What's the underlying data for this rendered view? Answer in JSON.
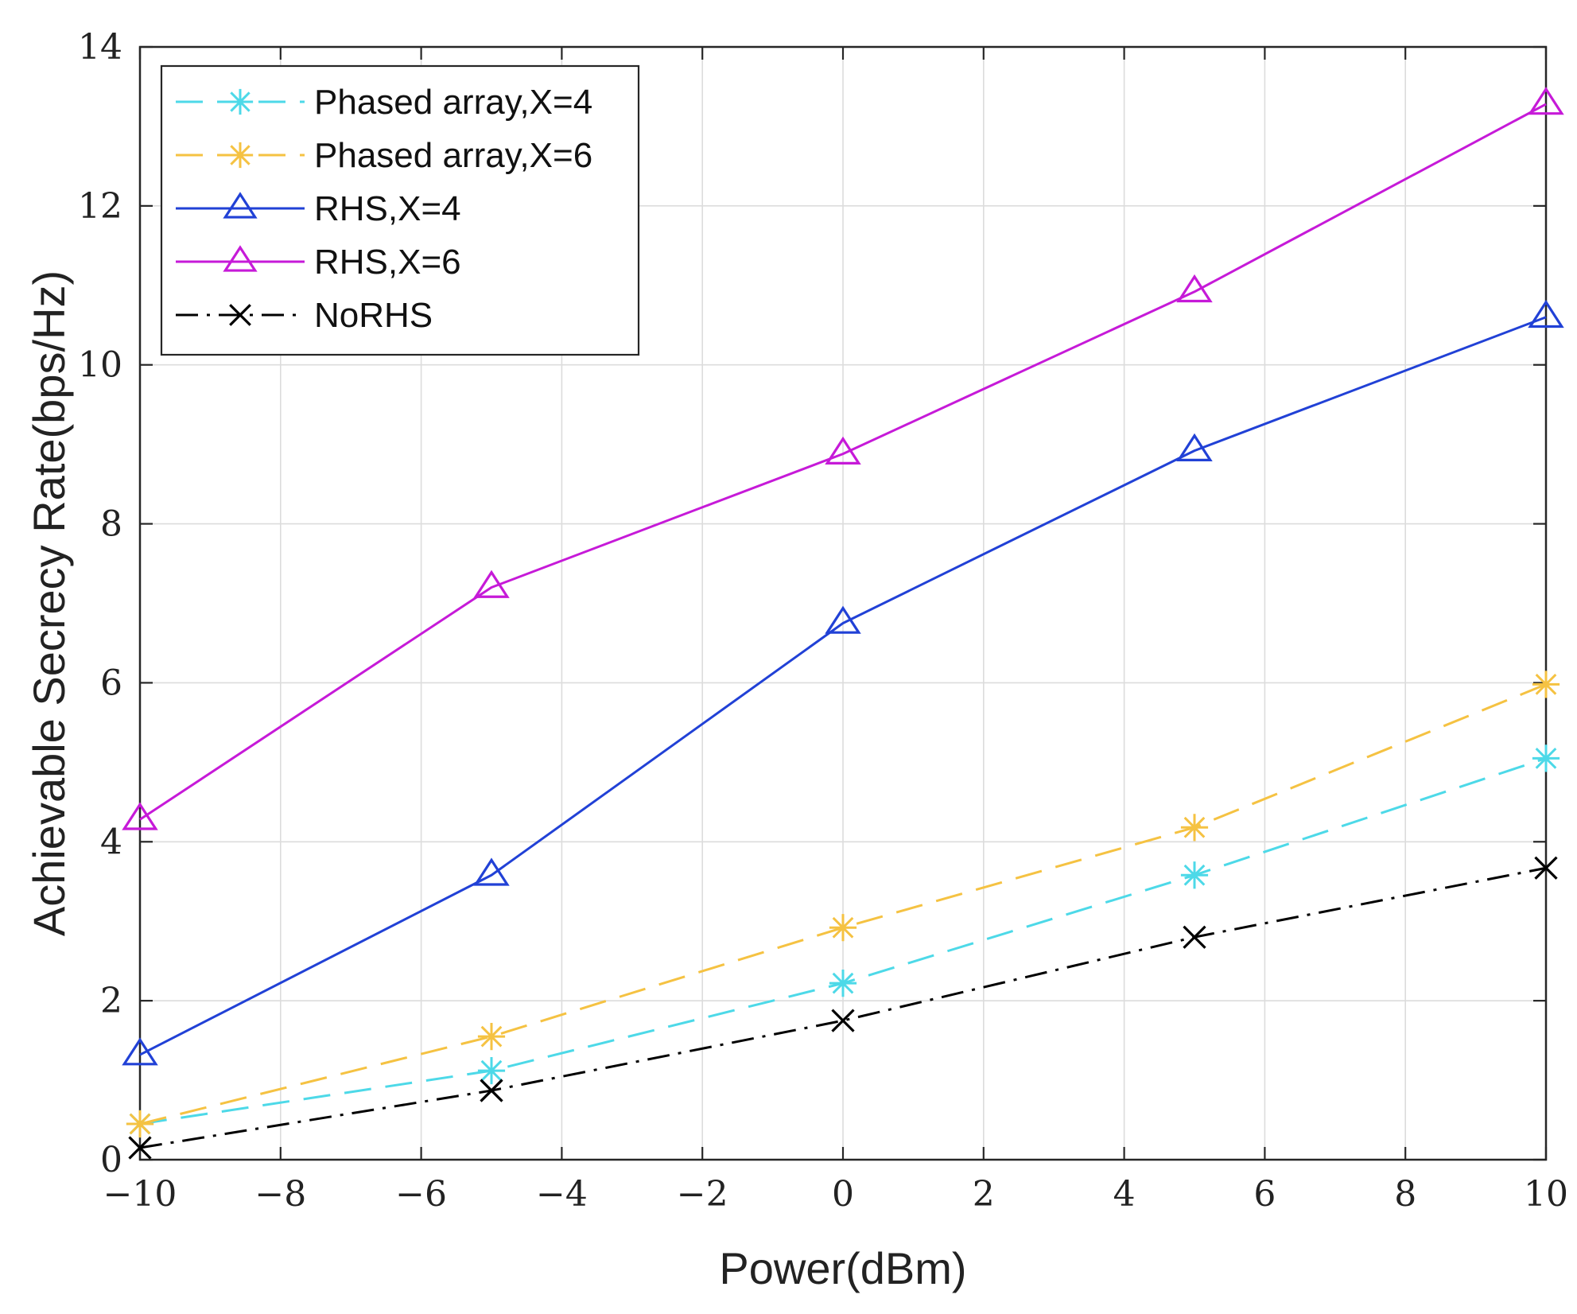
{
  "chart_data": {
    "type": "line",
    "title": "",
    "xlabel": "Power(dBm)",
    "ylabel": "Achievable Secrecy Rate(bps/Hz)",
    "xlim": [
      -10,
      10
    ],
    "ylim": [
      0,
      14
    ],
    "xticks": [
      -10,
      -8,
      -6,
      -4,
      -2,
      0,
      2,
      4,
      6,
      8,
      10
    ],
    "yticks": [
      0,
      2,
      4,
      6,
      8,
      10,
      12,
      14
    ],
    "xtick_labels": [
      "−10",
      "−8",
      "−6",
      "−4",
      "−2",
      "0",
      "2",
      "4",
      "6",
      "8",
      "10"
    ],
    "ytick_labels": [
      "0",
      "2",
      "4",
      "6",
      "8",
      "10",
      "12",
      "14"
    ],
    "grid": true,
    "legend_position": "top-left",
    "x": [
      -10,
      -5,
      0,
      5,
      10
    ],
    "series": [
      {
        "name": "Phased array,X=4",
        "values": [
          0.45,
          1.12,
          2.22,
          3.58,
          5.05
        ],
        "color": "#4dd9e8",
        "line_style": "dashed",
        "marker": "asterisk"
      },
      {
        "name": "Phased array,X=6",
        "values": [
          0.45,
          1.55,
          2.92,
          4.18,
          5.98
        ],
        "color": "#f5c242",
        "line_style": "dashed",
        "marker": "asterisk"
      },
      {
        "name": "RHS,X=4",
        "values": [
          1.32,
          3.58,
          6.75,
          8.92,
          10.6
        ],
        "color": "#2141d6",
        "line_style": "solid",
        "marker": "triangle"
      },
      {
        "name": "RHS,X=6",
        "values": [
          4.28,
          7.2,
          8.88,
          10.92,
          13.28
        ],
        "color": "#c61ad8",
        "line_style": "solid",
        "marker": "triangle"
      },
      {
        "name": "NoRHS",
        "values": [
          0.15,
          0.87,
          1.75,
          2.8,
          3.67
        ],
        "color": "#000000",
        "line_style": "dashdot",
        "marker": "x"
      }
    ]
  }
}
